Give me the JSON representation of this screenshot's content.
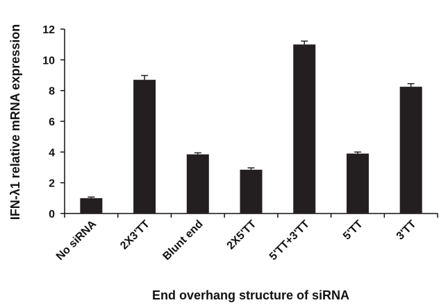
{
  "chart_data": {
    "type": "bar",
    "xlabel": "End overhang structure of siRNA",
    "ylabel": "IFN-λ1 relative mRNA expression",
    "categories": [
      "No siRNA",
      "2X3'TT",
      "Blunt end",
      "2X5'TT",
      "5'TT+3'TT",
      "5'TT",
      "3'TT"
    ],
    "values": [
      1.0,
      8.7,
      3.85,
      2.85,
      11.0,
      3.9,
      8.25
    ],
    "errors": [
      0.07,
      0.28,
      0.1,
      0.12,
      0.22,
      0.1,
      0.2
    ],
    "ylim": [
      0,
      12
    ],
    "yticks": [
      "0",
      "2",
      "4",
      "6",
      "8",
      "10",
      "12"
    ],
    "bar_color": "#231f20",
    "grid": false
  }
}
